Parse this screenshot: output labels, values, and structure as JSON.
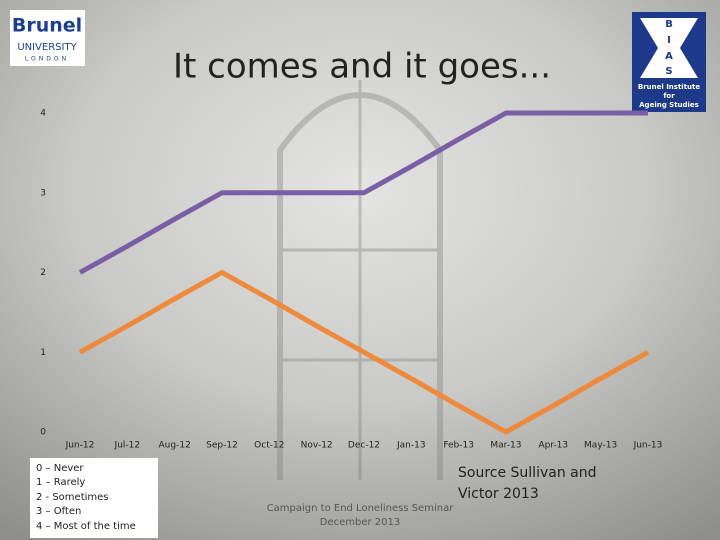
{
  "logos": {
    "brunel": [
      "Brunel",
      "UNIVERSITY",
      "LONDON"
    ],
    "bias": {
      "letters": [
        "B",
        "I",
        "A",
        "S"
      ],
      "caption": [
        "Brunel Institute",
        "for",
        "Ageing Studies"
      ]
    }
  },
  "chart_data": {
    "type": "line",
    "title": "It comes and it goes...",
    "categories": [
      "Jun-12",
      "Jul-12",
      "Aug-12",
      "Sep-12",
      "Oct-12",
      "Nov-12",
      "Dec-12",
      "Jan-13",
      "Feb-13",
      "Mar-13",
      "Apr-13",
      "May-13",
      "Jun-13"
    ],
    "series": [
      {
        "color": "#7a5fa6",
        "values": [
          2,
          2.33,
          2.67,
          3,
          3,
          3,
          3,
          3.33,
          3.67,
          4,
          4,
          4,
          4
        ]
      },
      {
        "color": "#ef8a3c",
        "values": [
          1,
          1.33,
          1.67,
          2,
          1.67,
          1.33,
          1,
          0.67,
          0.33,
          0,
          0.33,
          0.67,
          1
        ]
      }
    ],
    "ylim": [
      0,
      4
    ],
    "yticks": [
      0,
      1,
      2,
      3,
      4
    ],
    "grid": false
  },
  "key": [
    "0 – Never",
    "1 – Rarely",
    "2 - Sometimes",
    "3 – Often",
    "4 – Most of the time"
  ],
  "source": [
    "Source Sullivan and",
    "Victor 2013"
  ],
  "footer": [
    "Campaign to End Loneliness Seminar",
    "December 2013"
  ]
}
